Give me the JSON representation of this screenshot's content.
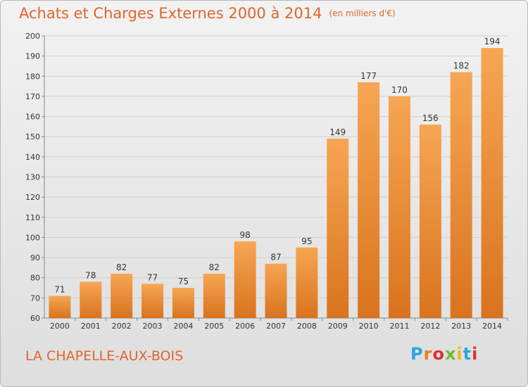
{
  "header": {
    "title": "Achats et Charges Externes 2000 à 2014",
    "subtitle": "(en milliers d'€)"
  },
  "footer": {
    "commune": "LA CHAPELLE-AUX-BOIS",
    "logo": "Proxiti"
  },
  "colors": {
    "bar_light": "#f7a653",
    "bar_dark": "#d9731e",
    "title": "#e0662a",
    "logo": [
      "#2aa6e0",
      "#f07c1c",
      "#e03030",
      "#6cbf2a",
      "#f2b821",
      "#2aa6e0",
      "#e03030"
    ]
  },
  "chart_data": {
    "type": "bar",
    "title": "Achats et Charges Externes 2000 à 2014",
    "categories": [
      "2000",
      "2001",
      "2002",
      "2003",
      "2004",
      "2005",
      "2006",
      "2007",
      "2008",
      "2009",
      "2010",
      "2011",
      "2012",
      "2013",
      "2014"
    ],
    "values": [
      71,
      78,
      82,
      77,
      75,
      82,
      98,
      87,
      95,
      149,
      177,
      170,
      156,
      182,
      194
    ],
    "ylim": [
      60,
      200
    ],
    "yticks": [
      60,
      70,
      80,
      90,
      100,
      110,
      120,
      130,
      140,
      150,
      160,
      170,
      180,
      190,
      200
    ],
    "grid": true
  }
}
